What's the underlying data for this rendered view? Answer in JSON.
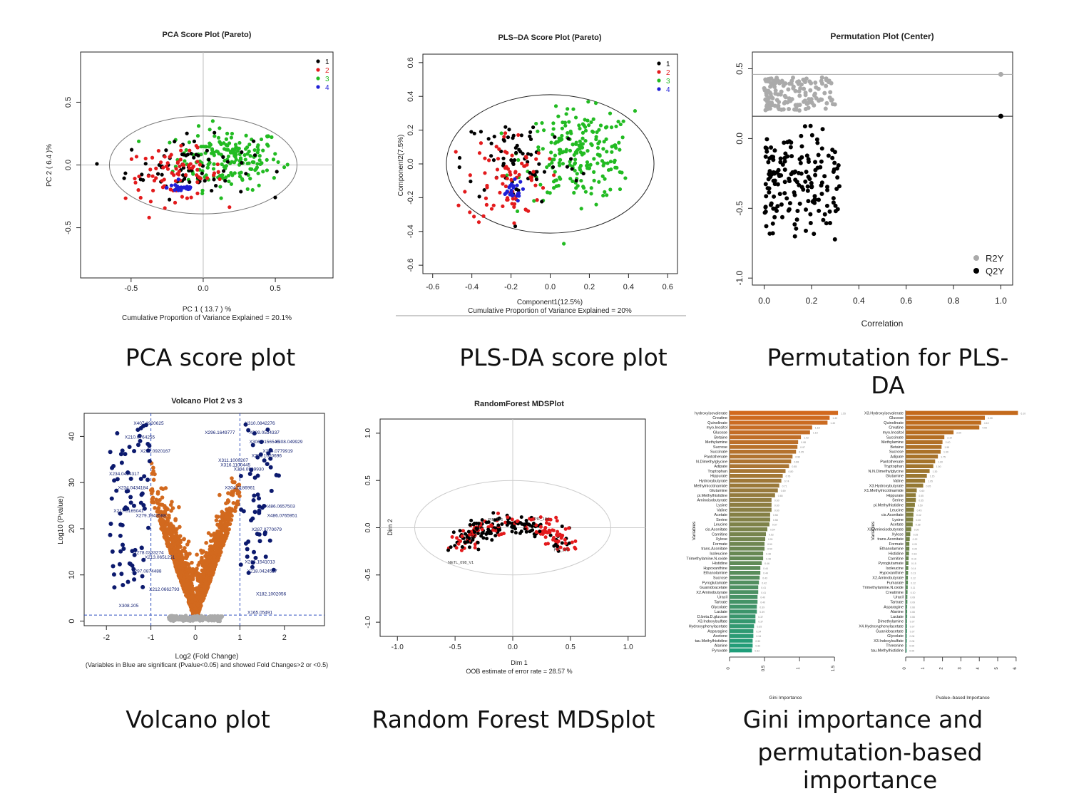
{
  "captions": {
    "pca": "PCA score plot",
    "plsda": "PLS-DA score plot",
    "perm": "Permutation for PLS-DA",
    "volcano": "Volcano plot",
    "rf": "Random Forest MDSplot",
    "gini_line1": "Gini importance and",
    "gini_line2": "permutation-based importance"
  },
  "colors": {
    "g1": "#000000",
    "g2": "#e31a1c",
    "g3": "#22bb22",
    "g4": "#1f1fd6",
    "orange": "#d2691e",
    "navy": "#0c1a6e",
    "grey": "#aaaaaa",
    "teal": "#1f9e7a"
  },
  "chart_data": [
    {
      "id": "pca",
      "type": "scatter",
      "title": "PCA Score Plot (Pareto)",
      "xlabel": "PC 1  ( 13.7 ) %",
      "ylabel": "PC 2  ( 6.4 )%",
      "subtitle": "Cumulative Proportion of Variance Explained = 20.1%",
      "xlim": [
        -0.85,
        0.9
      ],
      "ylim": [
        -0.9,
        0.9
      ],
      "xticks": [
        -0.5,
        0.0,
        0.5
      ],
      "yticks": [
        -0.5,
        0.0,
        0.5
      ],
      "legend": [
        "1",
        "2",
        "3",
        "4"
      ],
      "clusters": [
        {
          "group": 3,
          "cx": 0.18,
          "cy": 0.05,
          "sx": 0.18,
          "sy": 0.12,
          "n": 190
        },
        {
          "group": 1,
          "cx": -0.1,
          "cy": -0.02,
          "sx": 0.22,
          "sy": 0.12,
          "n": 70
        },
        {
          "group": 2,
          "cx": -0.2,
          "cy": -0.08,
          "sx": 0.17,
          "sy": 0.1,
          "n": 80
        },
        {
          "group": 4,
          "cx": -0.15,
          "cy": -0.18,
          "sx": 0.05,
          "sy": 0.02,
          "n": 30
        }
      ]
    },
    {
      "id": "plsda",
      "type": "scatter",
      "title": "PLS–DA Score Plot (Pareto)",
      "xlabel": "Component1(12.5%)",
      "ylabel": "Component2(7.5%)",
      "subtitle": "Cumulative Proportion of Variance Explained = 20%",
      "xlim": [
        -0.65,
        0.65
      ],
      "ylim": [
        -0.65,
        0.65
      ],
      "xticks": [
        -0.6,
        -0.4,
        -0.2,
        0.0,
        0.2,
        0.4,
        0.6
      ],
      "yticks": [
        -0.6,
        -0.4,
        -0.2,
        0.0,
        0.2,
        0.4,
        0.6
      ],
      "legend": [
        "1",
        "2",
        "3",
        "4"
      ],
      "clusters": [
        {
          "group": 3,
          "cx": 0.15,
          "cy": 0.05,
          "sx": 0.14,
          "sy": 0.13,
          "n": 220
        },
        {
          "group": 1,
          "cx": -0.15,
          "cy": 0.03,
          "sx": 0.15,
          "sy": 0.14,
          "n": 70
        },
        {
          "group": 2,
          "cx": -0.22,
          "cy": -0.08,
          "sx": 0.1,
          "sy": 0.14,
          "n": 80
        },
        {
          "group": 4,
          "cx": -0.2,
          "cy": -0.16,
          "sx": 0.03,
          "sy": 0.03,
          "n": 25
        }
      ]
    },
    {
      "id": "perm",
      "type": "scatter",
      "title": "Permutation Plot (Center)",
      "xlabel": "Correlation",
      "ylabel": "",
      "xlim": [
        -0.05,
        1.05
      ],
      "ylim": [
        -1.05,
        0.62
      ],
      "xticks": [
        0.0,
        0.2,
        0.4,
        0.6,
        0.8,
        1.0
      ],
      "yticks": [
        -1.0,
        -0.5,
        0.0,
        0.5
      ],
      "legend": [
        "R2Y",
        "Q2Y"
      ],
      "r2y_line": 0.46,
      "q2y_line": 0.16,
      "r2y_cloud": {
        "xmin": 0.0,
        "xmax": 0.3,
        "ymin": 0.18,
        "ymax": 0.46,
        "n": 150
      },
      "q2y_cloud": {
        "xmin": 0.0,
        "xmax": 0.32,
        "ymin": -0.78,
        "ymax": 0.1,
        "n": 170
      }
    },
    {
      "id": "volcano",
      "type": "scatter",
      "title": "Volcano Plot 2 vs 3",
      "xlabel": "Log2 (Fold Change)",
      "ylabel": "Log10 (Pvalue)",
      "subtitle": "(Variables in Blue are significant (Pvalue<0.05) and showed Fold Changes>2 or <0.5)",
      "xlim": [
        -2.5,
        2.9
      ],
      "ylim": [
        -1,
        45
      ],
      "xticks": [
        -2,
        -1,
        0,
        1,
        2
      ],
      "yticks": [
        0,
        10,
        20,
        30,
        40
      ],
      "vlines": [
        -1,
        1
      ],
      "hline": 1.3,
      "labels": [
        {
          "x": -1.05,
          "y": 43,
          "t": "X407.1920625"
        },
        {
          "x": -1.25,
          "y": 40,
          "t": "X210.0764255"
        },
        {
          "x": -0.9,
          "y": 37,
          "t": "X212.0920167"
        },
        {
          "x": -1.6,
          "y": 32,
          "t": "X234.0434317"
        },
        {
          "x": -1.4,
          "y": 29,
          "t": "X234.0434184"
        },
        {
          "x": -1.5,
          "y": 24,
          "t": "X217.0165041"
        },
        {
          "x": -1.0,
          "y": 23,
          "t": "X279.1342588"
        },
        {
          "x": -1.05,
          "y": 15,
          "t": "X278.0333274"
        },
        {
          "x": -0.8,
          "y": 14,
          "t": "X213.0651251"
        },
        {
          "x": -1.1,
          "y": 11,
          "t": "X297.0874488"
        },
        {
          "x": -0.7,
          "y": 7,
          "t": "X212.0662793"
        },
        {
          "x": -1.5,
          "y": 3.5,
          "t": "X308.205"
        },
        {
          "x": 1.45,
          "y": 43,
          "t": "X310.0842276"
        },
        {
          "x": 0.55,
          "y": 41,
          "t": "X296.1649777"
        },
        {
          "x": 1.55,
          "y": 41,
          "t": "X309.0534337"
        },
        {
          "x": 1.55,
          "y": 39,
          "t": "X306.0156545"
        },
        {
          "x": 2.1,
          "y": 39,
          "t": "X308.049929"
        },
        {
          "x": 1.6,
          "y": 36,
          "t": "X296.1020696"
        },
        {
          "x": 1.85,
          "y": 37,
          "t": "X254.0779919"
        },
        {
          "x": 0.85,
          "y": 35,
          "t": "X311.1000207"
        },
        {
          "x": 0.9,
          "y": 34,
          "t": "X316.1100445"
        },
        {
          "x": 1.2,
          "y": 33,
          "t": "X304.0509930"
        },
        {
          "x": 1.0,
          "y": 29,
          "t": "X304.0186961"
        },
        {
          "x": 1.9,
          "y": 25,
          "t": "X486.0657503"
        },
        {
          "x": 1.95,
          "y": 23,
          "t": "X486.0765951"
        },
        {
          "x": 1.6,
          "y": 20,
          "t": "X287.0770079"
        },
        {
          "x": 1.45,
          "y": 13,
          "t": "X266.1541013"
        },
        {
          "x": 1.5,
          "y": 11,
          "t": "X218.0424527"
        },
        {
          "x": 1.7,
          "y": 6,
          "t": "X182.1002056"
        },
        {
          "x": 1.45,
          "y": 2,
          "t": "X165.05491"
        }
      ]
    },
    {
      "id": "rf",
      "type": "scatter",
      "title": "RandomForest MDSPlot",
      "xlabel": "Dim 1",
      "ylabel": "Dim 2",
      "subtitle": "OOB estimate of error rate = 28.57 %",
      "xlim": [
        -1.15,
        1.15
      ],
      "ylim": [
        -1.15,
        1.15
      ],
      "xticks": [
        -1.0,
        -0.5,
        0.0,
        0.5,
        1.0
      ],
      "yticks": [
        -1.0,
        -0.5,
        0.0,
        0.5,
        1.0
      ],
      "labels": [
        {
          "x": -0.45,
          "y": -0.38,
          "t": "NETL_098_V1"
        },
        {
          "x": -0.15,
          "y": 0.07,
          "t": "PIF_176"
        },
        {
          "x": 0.25,
          "y": 0.08,
          "t": "PIF_184"
        },
        {
          "x": 0.42,
          "y": -0.25,
          "t": "PIF_190"
        }
      ]
    },
    {
      "id": "gini",
      "type": "bar",
      "xlabel": "Gini Importance",
      "ylabel": "Variables",
      "xlim": [
        0,
        1.6
      ],
      "xticks": [
        0,
        0.5,
        1.0,
        1.5
      ],
      "categories": [
        "hydroxyisovalerate",
        "Creatine",
        "Quinolinate",
        "myo.Inositol",
        "Glucose",
        "Betaine",
        "Methylamine",
        "Sucrose",
        "Succinate",
        "Pantothenate",
        "N.Dimethylglycine",
        "Adipate",
        "Tryptophan",
        "Hippurate",
        "Hydroxybutyrate",
        "Methylnicotinamide",
        "Glutamine",
        "pi.Methylhistidine",
        "Aminoisobutyrate",
        "Lysine",
        "Valine",
        "Acetate",
        "Serine",
        "Leucine",
        "cis.Aconitate",
        "Carnitine",
        "Xylose",
        "Formate",
        "trans.Aconitate",
        "Isoleucine",
        "Trimethylamine.N.oxide",
        "Histidine",
        "Hypoxanthine",
        "Ethanolamine",
        "Sucrose",
        "Pyroglutamate",
        "Guanidoacetate",
        "X2.Aminobutyrate",
        "Uracil",
        "Tartrate",
        "Glycolate",
        "Lactate",
        "D.beta.D.glucose",
        "X3.Indoxylsulfate",
        "Hydroxyphenylacetate",
        "Asparagine",
        "Acetone",
        "tau.Methylhistidine",
        "Alanine",
        "Pyruvate"
      ],
      "values": [
        1.55,
        1.43,
        1.4,
        1.18,
        1.15,
        1.02,
        0.98,
        0.97,
        0.95,
        0.9,
        0.88,
        0.85,
        0.8,
        0.76,
        0.74,
        0.71,
        0.69,
        0.65,
        0.6,
        0.6,
        0.6,
        0.58,
        0.58,
        0.57,
        0.54,
        0.52,
        0.51,
        0.5,
        0.5,
        0.48,
        0.48,
        0.46,
        0.44,
        0.44,
        0.43,
        0.42,
        0.41,
        0.41,
        0.4,
        0.4,
        0.39,
        0.39,
        0.37,
        0.37,
        0.35,
        0.34,
        0.34,
        0.33,
        0.33,
        0.32
      ]
    },
    {
      "id": "pval",
      "type": "bar",
      "xlabel": "Pvalue–based Importance",
      "ylabel": "Variables",
      "xlim": [
        0,
        6.2
      ],
      "xticks": [
        0,
        1,
        2,
        3,
        4,
        5,
        6
      ],
      "categories": [
        "X3.Hydroxyisovalerate",
        "Glucose",
        "Quinolinate",
        "Creatine",
        "myo.Inositol",
        "Succinate",
        "Methylamine",
        "Betaine",
        "Sucrose",
        "Adipate",
        "Pantothenate",
        "Tryptophan",
        "N.N.Dimethylglycine",
        "Glutamine",
        "Valine",
        "X3.Hydroxybutyrate",
        "X1.Methylnicotinamide",
        "Hippurate",
        "Serine",
        "pi.Methylhistidine",
        "Leucine",
        "cis.Aconitate",
        "Lysine",
        "Acetate",
        "X3.Aminoisobutyrate",
        "Xylose",
        "trans.Aconitate",
        "Formate",
        "Ethanolamine",
        "Histidine",
        "Carnitine",
        "Pyroglutamate",
        "Isoleucine",
        "Hypoxanthine",
        "X2.Aminobutyrate",
        "Fumarate",
        "Trimethylamine.N.oxide",
        "Creatinine",
        "Uracil",
        "Tartrate",
        "Asparagine",
        "Alanine",
        "Lactate",
        "Dimethylamine",
        "X4.Hydroxyphenylacetate",
        "Guanidoacetate",
        "Glycolate",
        "X3.Indoxylsulfate",
        "Threonine",
        "tau.Methylhistidine"
      ],
      "values": [
        6.1,
        4.3,
        4.1,
        4.0,
        2.6,
        2.1,
        2.0,
        1.95,
        1.9,
        1.75,
        1.6,
        1.5,
        1.3,
        1.15,
        1.05,
        0.95,
        0.6,
        0.55,
        0.55,
        0.5,
        0.45,
        0.42,
        0.4,
        0.38,
        0.3,
        0.25,
        0.22,
        0.2,
        0.2,
        0.18,
        0.16,
        0.15,
        0.14,
        0.13,
        0.12,
        0.12,
        0.11,
        0.1,
        0.09,
        0.09,
        0.08,
        0.08,
        0.08,
        0.07,
        0.07,
        0.07,
        0.06,
        0.06,
        0.05,
        0.05
      ]
    }
  ]
}
